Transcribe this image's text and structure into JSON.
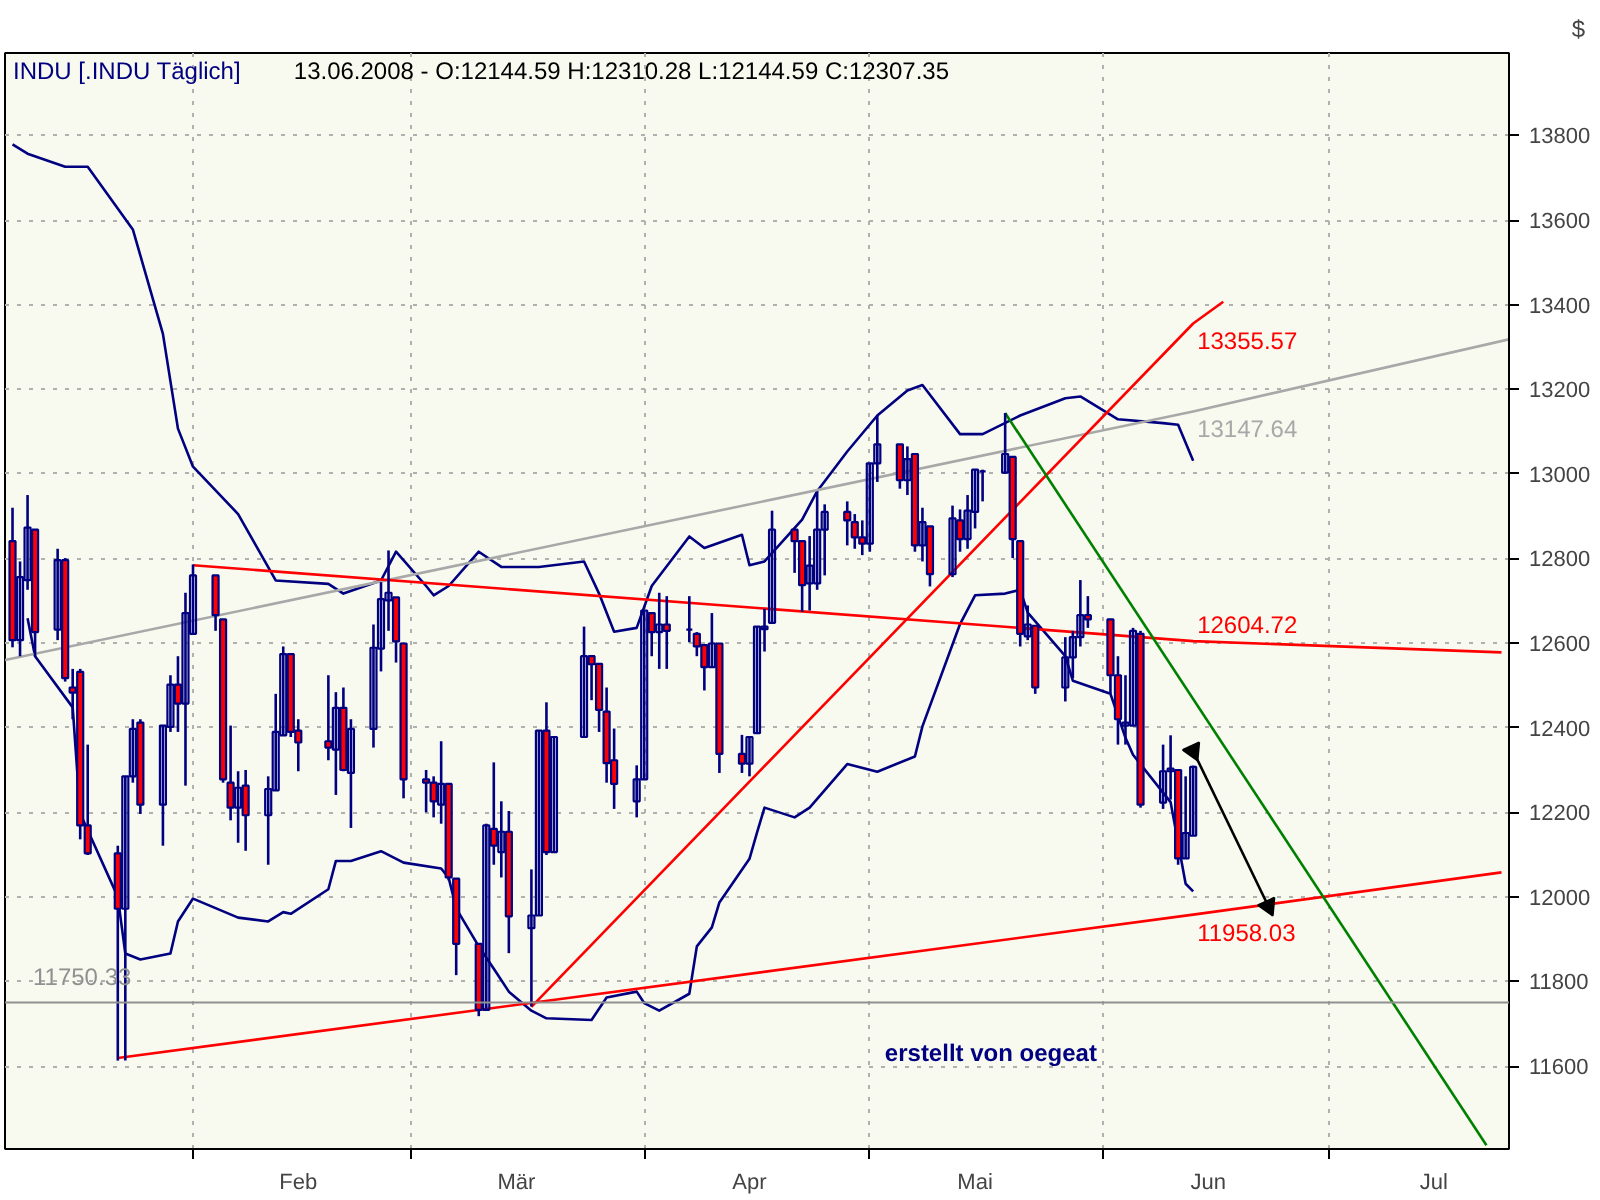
{
  "chart_data": {
    "type": "candlestick",
    "title": "INDU [.INDU  Täglich]",
    "subtitle": "13.06.2008 - O:12144.59 H:12310.28 L:12144.59 C:12307.35",
    "ylabel": "$",
    "annotations": [
      "erstellt von oegeat"
    ],
    "x": [
      "2008-01-08",
      "2008-01-09",
      "2008-01-10",
      "2008-01-11",
      "2008-01-14",
      "2008-01-15",
      "2008-01-16",
      "2008-01-17",
      "2008-01-18",
      "2008-01-22",
      "2008-01-23",
      "2008-01-24",
      "2008-01-25",
      "2008-01-28",
      "2008-01-29",
      "2008-01-30",
      "2008-01-31",
      "2008-02-01",
      "2008-02-04",
      "2008-02-05",
      "2008-02-06",
      "2008-02-07",
      "2008-02-08",
      "2008-02-11",
      "2008-02-12",
      "2008-02-13",
      "2008-02-14",
      "2008-02-15",
      "2008-02-19",
      "2008-02-20",
      "2008-02-21",
      "2008-02-22",
      "2008-02-25",
      "2008-02-26",
      "2008-02-27",
      "2008-02-28",
      "2008-02-29",
      "2008-03-03",
      "2008-03-04",
      "2008-03-05",
      "2008-03-06",
      "2008-03-07",
      "2008-03-10",
      "2008-03-11",
      "2008-03-12",
      "2008-03-13",
      "2008-03-14",
      "2008-03-17",
      "2008-03-18",
      "2008-03-19",
      "2008-03-20",
      "2008-03-24",
      "2008-03-25",
      "2008-03-26",
      "2008-03-27",
      "2008-03-28",
      "2008-03-31",
      "2008-04-01",
      "2008-04-02",
      "2008-04-03",
      "2008-04-04",
      "2008-04-07",
      "2008-04-08",
      "2008-04-09",
      "2008-04-10",
      "2008-04-11",
      "2008-04-14",
      "2008-04-15",
      "2008-04-16",
      "2008-04-17",
      "2008-04-18",
      "2008-04-21",
      "2008-04-22",
      "2008-04-23",
      "2008-04-24",
      "2008-04-25",
      "2008-04-28",
      "2008-04-29",
      "2008-04-30",
      "2008-05-01",
      "2008-05-02",
      "2008-05-05",
      "2008-05-06",
      "2008-05-07",
      "2008-05-08",
      "2008-05-09",
      "2008-05-12",
      "2008-05-13",
      "2008-05-14",
      "2008-05-15",
      "2008-05-16",
      "2008-05-19",
      "2008-05-20",
      "2008-05-21",
      "2008-05-22",
      "2008-05-23",
      "2008-05-27",
      "2008-05-28",
      "2008-05-29",
      "2008-05-30",
      "2008-06-02",
      "2008-06-03",
      "2008-06-04",
      "2008-06-05",
      "2008-06-06",
      "2008-06-09",
      "2008-06-10",
      "2008-06-11",
      "2008-06-12",
      "2008-06-13"
    ],
    "ohlc": [
      [
        12841,
        12920,
        12590,
        12607
      ],
      [
        12607,
        12793,
        12569,
        12756
      ],
      [
        12749,
        12950,
        12726,
        12873
      ],
      [
        12868,
        12868,
        12569,
        12626
      ],
      [
        12632,
        12823,
        12607,
        12796
      ],
      [
        12796,
        12801,
        12509,
        12517
      ],
      [
        12495,
        12539,
        12420,
        12483
      ],
      [
        12532,
        12539,
        12136,
        12169
      ],
      [
        12169,
        12360,
        12099,
        12103
      ],
      [
        12103,
        12121,
        11613,
        11972
      ],
      [
        11972,
        12285,
        11613,
        12285
      ],
      [
        12285,
        12420,
        12270,
        12397
      ],
      [
        12412,
        12420,
        12196,
        12218
      ],
      [
        12218,
        12405,
        12121,
        12405
      ],
      [
        12402,
        12524,
        12390,
        12502
      ],
      [
        12502,
        12569,
        12390,
        12457
      ],
      [
        12457,
        12719,
        12263,
        12671
      ],
      [
        12622,
        12786,
        12622,
        12760
      ],
      [
        12760,
        12760,
        12629,
        12666
      ],
      [
        12656,
        12656,
        12270,
        12278
      ],
      [
        12270,
        12405,
        12181,
        12211
      ],
      [
        12211,
        12297,
        12128,
        12258
      ],
      [
        12263,
        12300,
        12109,
        12193
      ],
      [
        12193,
        12285,
        12076,
        12255
      ],
      [
        12252,
        12480,
        12252,
        12390
      ],
      [
        12382,
        12592,
        12382,
        12574
      ],
      [
        12574,
        12574,
        12378,
        12390
      ],
      [
        12393,
        12420,
        12297,
        12365
      ],
      [
        12368,
        12524,
        12323,
        12353
      ],
      [
        12348,
        12484,
        12241,
        12447
      ],
      [
        12447,
        12495,
        12297,
        12300
      ],
      [
        12293,
        12420,
        12163,
        12397
      ],
      [
        12397,
        12644,
        12353,
        12589
      ],
      [
        12587,
        12744,
        12533,
        12704
      ],
      [
        12701,
        12819,
        12629,
        12719
      ],
      [
        12708,
        12708,
        12554,
        12604
      ],
      [
        12599,
        12599,
        12233,
        12278
      ],
      [
        12278,
        12300,
        12200,
        12270
      ],
      [
        12270,
        12285,
        12188,
        12226
      ],
      [
        12218,
        12368,
        12173,
        12267
      ],
      [
        12267,
        12267,
        12039,
        12046
      ],
      [
        12043,
        12043,
        11815,
        11889
      ],
      [
        11889,
        11889,
        11718,
        11733
      ],
      [
        11733,
        12173,
        11733,
        12169
      ],
      [
        12161,
        12318,
        12076,
        12121
      ],
      [
        12106,
        12226,
        12046,
        12154
      ],
      [
        12154,
        12203,
        11867,
        11954
      ],
      [
        11926,
        12065,
        11741,
        11956
      ],
      [
        11956,
        12393,
        11956,
        12393
      ],
      [
        12393,
        12460,
        12099,
        12106
      ],
      [
        12106,
        12378,
        12106,
        12378
      ],
      [
        12378,
        12639,
        12378,
        12569
      ],
      [
        12569,
        12569,
        12465,
        12550
      ],
      [
        12551,
        12551,
        12390,
        12442
      ],
      [
        12438,
        12495,
        12270,
        12316
      ],
      [
        12323,
        12398,
        12208,
        12267
      ],
      [
        12226,
        12311,
        12188,
        12278
      ],
      [
        12278,
        12677,
        12278,
        12677
      ],
      [
        12671,
        12671,
        12569,
        12626
      ],
      [
        12626,
        12719,
        12539,
        12644
      ],
      [
        12644,
        12711,
        12539,
        12629
      ],
      [
        12632,
        12711,
        12602,
        12632
      ],
      [
        12622,
        12626,
        12569,
        12592
      ],
      [
        12595,
        12595,
        12488,
        12543
      ],
      [
        12543,
        12671,
        12543,
        12599
      ],
      [
        12599,
        12599,
        12293,
        12338
      ],
      [
        12338,
        12383,
        12293,
        12315
      ],
      [
        12315,
        12378,
        12285,
        12378
      ],
      [
        12387,
        12639,
        12387,
        12639
      ],
      [
        12633,
        12681,
        12580,
        12639
      ],
      [
        12648,
        12913,
        12648,
        12868
      ],
      [
        12868,
        12868,
        12766,
        12841
      ],
      [
        12841,
        12841,
        12674,
        12737
      ],
      [
        12741,
        12853,
        12677,
        12783
      ],
      [
        12741,
        12958,
        12726,
        12868
      ],
      [
        12868,
        12928,
        12760,
        12910
      ],
      [
        12910,
        12935,
        12831,
        12890
      ],
      [
        12886,
        12905,
        12823,
        12850
      ],
      [
        12850,
        12890,
        12808,
        12835
      ],
      [
        12835,
        13025,
        12816,
        13025
      ],
      [
        13025,
        13137,
        12981,
        13070
      ],
      [
        13070,
        13070,
        12965,
        12985
      ],
      [
        12985,
        13065,
        12950,
        13035
      ],
      [
        13047,
        13047,
        12816,
        12831
      ],
      [
        12831,
        12920,
        12793,
        12886
      ],
      [
        12876,
        12876,
        12734,
        12763
      ],
      [
        12763,
        12925,
        12756,
        12895
      ],
      [
        12890,
        12916,
        12816,
        12846
      ],
      [
        12846,
        12950,
        12823,
        12913
      ],
      [
        12910,
        13010,
        12871,
        13010
      ],
      [
        13006,
        13010,
        12935,
        13006
      ],
      [
        13003,
        13144,
        13000,
        13047
      ],
      [
        13040,
        13040,
        12801,
        12846
      ],
      [
        12841,
        12841,
        12592,
        12622
      ],
      [
        12616,
        12689,
        12607,
        12644
      ],
      [
        12641,
        12641,
        12480,
        12495
      ],
      [
        12495,
        12614,
        12462,
        12566
      ],
      [
        12566,
        12629,
        12517,
        12614
      ],
      [
        12614,
        12749,
        12592,
        12666
      ],
      [
        12666,
        12711,
        12636,
        12656
      ],
      [
        12656,
        12656,
        12480,
        12524
      ],
      [
        12524,
        12569,
        12360,
        12420
      ],
      [
        12405,
        12524,
        12360,
        12412
      ],
      [
        12405,
        12636,
        12405,
        12629
      ],
      [
        12622,
        12629,
        12211,
        12218
      ],
      [
        12223,
        12360,
        12208,
        12297
      ],
      [
        12297,
        12382,
        12230,
        12303
      ],
      [
        12300,
        12300,
        12076,
        12091
      ],
      [
        12091,
        12285,
        12091,
        12151
      ],
      [
        12144.59,
        12310.28,
        12144.59,
        12307.35
      ]
    ],
    "color": "#000080",
    "colors": [
      "#ff0000",
      "#000080",
      "#000080",
      "#ff0000",
      "#000080",
      "#ff0000",
      "#ff0000",
      "#ff0000",
      "#ff0000",
      "#ff0000",
      "#000080",
      "#000080",
      "#ff0000",
      "#000080",
      "#000080",
      "#ff0000",
      "#000080",
      "#000080",
      "#ff0000",
      "#ff0000",
      "#ff0000",
      "#000080",
      "#ff0000",
      "#000080",
      "#000080",
      "#000080",
      "#ff0000",
      "#ff0000",
      "#ff0000",
      "#000080",
      "#ff0000",
      "#000080",
      "#000080",
      "#000080",
      "#000080",
      "#ff0000",
      "#ff0000",
      "#ff0000",
      "#ff0000",
      "#000080",
      "#ff0000",
      "#ff0000",
      "#ff0000",
      "#000080",
      "#ff0000",
      "#000080",
      "#ff0000",
      "#000080",
      "#000080",
      "#ff0000",
      "#000080",
      "#000080",
      "#ff0000",
      "#ff0000",
      "#ff0000",
      "#ff0000",
      "#000080",
      "#000080",
      "#ff0000",
      "#000080",
      "#ff0000",
      "#000080",
      "#ff0000",
      "#ff0000",
      "#000080",
      "#ff0000",
      "#ff0000",
      "#000080",
      "#000080",
      "#000080",
      "#000080",
      "#ff0000",
      "#ff0000",
      "#000080",
      "#000080",
      "#000080",
      "#ff0000",
      "#ff0000",
      "#ff0000",
      "#000080",
      "#000080",
      "#ff0000",
      "#000080",
      "#ff0000",
      "#000080",
      "#ff0000",
      "#000080",
      "#ff0000",
      "#000080",
      "#000080",
      "#000080",
      "#000080",
      "#ff0000",
      "#ff0000",
      "#000080",
      "#ff0000",
      "#000080",
      "#000080",
      "#000080",
      "#ff0000",
      "#ff0000",
      "#ff0000",
      "#000080",
      "#000080",
      "#ff0000",
      "#000080",
      "#000080",
      "#ff0000",
      "#000080",
      "#000080"
    ],
    "series": [
      {
        "type": "line",
        "color": "#000080",
        "x": [
          "2008-01-08",
          "2008-01-10",
          "2008-01-15",
          "2008-01-18",
          "2008-01-24",
          "2008-01-28",
          "2008-01-30",
          "2008-02-01",
          "2008-02-07",
          "2008-02-12",
          "2008-02-19",
          "2008-02-21",
          "2008-02-26",
          "2008-02-28",
          "2008-03-03",
          "2008-03-04",
          "2008-03-06",
          "2008-03-10",
          "2008-03-13",
          "2008-03-18",
          "2008-03-24",
          "2008-03-26",
          "2008-03-28",
          "2008-03-31",
          "2008-04-02",
          "2008-04-07",
          "2008-04-09",
          "2008-04-14",
          "2008-04-15",
          "2008-04-17",
          "2008-04-22",
          "2008-04-24",
          "2008-04-28",
          "2008-05-02",
          "2008-05-06",
          "2008-05-08",
          "2008-05-13",
          "2008-05-16",
          "2008-05-21",
          "2008-05-27",
          "2008-05-29",
          "2008-06-03",
          "2008-06-09",
          "2008-06-11",
          "2008-06-13"
        ],
        "values": [
          13779,
          13757,
          13726,
          13726,
          13578,
          13331,
          13107,
          13017,
          12905,
          12748,
          12740,
          12717,
          12748,
          12816,
          12735,
          12713,
          12735,
          12816,
          12780,
          12780,
          12793,
          12717,
          12627,
          12636,
          12735,
          12852,
          12825,
          12856,
          12784,
          12793,
          12892,
          12959,
          13053,
          13138,
          13197,
          13210,
          13094,
          13094,
          13138,
          13179,
          13183,
          13129,
          13120,
          13116,
          13031
        ]
      },
      {
        "type": "line",
        "color": "#000080",
        "x": [
          "2008-01-10",
          "2008-01-11",
          "2008-01-16",
          "2008-01-17",
          "2008-01-22",
          "2008-01-23",
          "2008-01-25",
          "2008-01-29",
          "2008-01-30",
          "2008-02-01",
          "2008-02-07",
          "2008-02-11",
          "2008-02-13",
          "2008-02-14",
          "2008-02-19",
          "2008-02-20",
          "2008-02-22",
          "2008-02-26",
          "2008-02-29",
          "2008-03-05",
          "2008-03-06",
          "2008-03-07",
          "2008-03-10",
          "2008-03-12",
          "2008-03-14",
          "2008-03-17",
          "2008-03-19",
          "2008-03-25",
          "2008-03-27",
          "2008-03-31",
          "2008-04-01",
          "2008-04-03",
          "2008-04-07",
          "2008-04-08",
          "2008-04-10",
          "2008-04-11",
          "2008-04-15",
          "2008-04-16",
          "2008-04-17",
          "2008-04-21",
          "2008-04-23",
          "2008-04-28",
          "2008-05-02",
          "2008-05-07",
          "2008-05-08",
          "2008-05-13",
          "2008-05-15",
          "2008-05-19",
          "2008-05-21",
          "2008-05-22",
          "2008-05-27",
          "2008-05-28",
          "2008-06-02",
          "2008-06-04",
          "2008-06-05",
          "2008-06-10",
          "2008-06-12",
          "2008-06-13"
        ],
        "values": [
          12659,
          12569,
          12448,
          12197,
          12000,
          11866,
          11852,
          11866,
          11942,
          11996,
          11951,
          11942,
          11964,
          11960,
          12018,
          12085,
          12085,
          12108,
          12081,
          12067,
          12045,
          11973,
          11883,
          11830,
          11776,
          11731,
          11713,
          11709,
          11762,
          11776,
          11749,
          11731,
          11771,
          11883,
          11928,
          11987,
          12090,
          12152,
          12211,
          12188,
          12211,
          12314,
          12296,
          12332,
          12403,
          12645,
          12713,
          12717,
          12726,
          12672,
          12569,
          12511,
          12480,
          12376,
          12336,
          12224,
          12031,
          12013
        ]
      },
      {
        "type": "line",
        "color": "#a8a8a8",
        "name": "13147.64",
        "x": [
          "2008-01-07",
          "2008-06-13",
          "2008-07-25"
        ],
        "values": [
          12560,
          13147.64,
          13318
        ]
      },
      {
        "type": "line",
        "color": "#ff0000",
        "name": "12604.72",
        "x": [
          "2008-02-01",
          "2008-06-13",
          "2008-07-24"
        ],
        "values": [
          12784,
          12604.72,
          12578
        ]
      },
      {
        "type": "line",
        "color": "#ff0000",
        "name": "13355.57",
        "x": [
          "2008-03-17",
          "2008-06-13",
          "2008-06-17"
        ],
        "values": [
          11740,
          13355.57,
          13407
        ]
      },
      {
        "type": "line",
        "color": "#ff0000",
        "name": "11958.03",
        "x": [
          "2008-01-22",
          "2008-06-13",
          "2008-07-24"
        ],
        "values": [
          11619,
          11958.03,
          12058
        ]
      },
      {
        "type": "line",
        "color": "#008000",
        "x": [
          "2008-05-19",
          "2008-07-22"
        ],
        "values": [
          13144,
          11413
        ]
      },
      {
        "type": "line",
        "marker": "triangle",
        "color": "#000000",
        "x": [
          "2008-06-13",
          "2008-06-23"
        ],
        "values": [
          12345,
          11978
        ]
      }
    ],
    "ref_lines": [
      {
        "axis": "y",
        "value": 11750.33,
        "label": "11750.33",
        "color": "#909090"
      }
    ],
    "xlim": [
      "2008-01-07",
      "2008-07-25"
    ],
    "xticks": [
      {
        "value": "2008-02-01",
        "label": null
      },
      {
        "value": "2008-02-15",
        "label": "Feb"
      },
      {
        "value": "2008-03-01",
        "label": null
      },
      {
        "value": "2008-03-15",
        "label": "Mär"
      },
      {
        "value": "2008-04-01",
        "label": null
      },
      {
        "value": "2008-04-15",
        "label": "Apr"
      },
      {
        "value": "2008-05-01",
        "label": null
      },
      {
        "value": "2008-05-15",
        "label": "Mai"
      },
      {
        "value": "2008-06-01",
        "label": null
      },
      {
        "value": "2008-06-15",
        "label": "Jun"
      },
      {
        "value": "2008-07-01",
        "label": null
      },
      {
        "value": "2008-07-15",
        "label": "Jul"
      }
    ],
    "ylim": [
      11404,
      13995
    ],
    "yticks": [
      11600,
      11800,
      12000,
      12200,
      12400,
      12600,
      12800,
      13000,
      13200,
      13400,
      13600,
      13800
    ],
    "grid": true
  }
}
